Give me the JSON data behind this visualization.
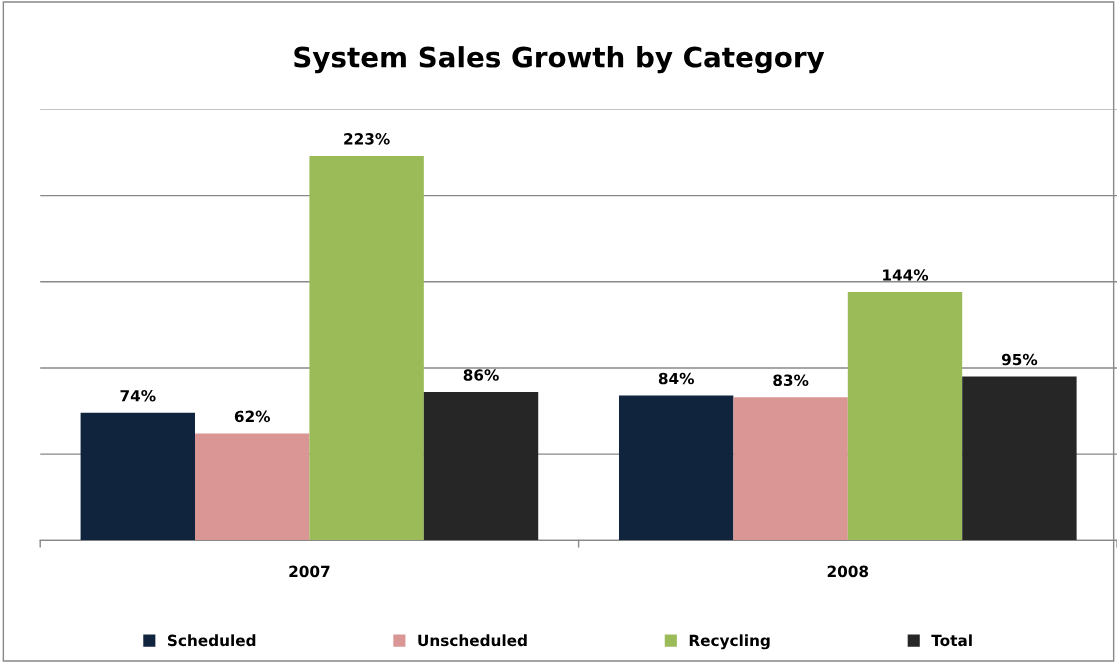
{
  "chart_data": {
    "type": "bar",
    "title": "System Sales Growth by Category",
    "categories": [
      "2007",
      "2008"
    ],
    "series": [
      {
        "name": "Scheduled",
        "color": "#10243e",
        "values": [
          74,
          84
        ],
        "value_labels": [
          "74%",
          "84%"
        ]
      },
      {
        "name": "Unscheduled",
        "color": "#d99694",
        "values": [
          62,
          83
        ],
        "value_labels": [
          "62%",
          "83%"
        ]
      },
      {
        "name": "Recycling",
        "color": "#9bbb59",
        "values": [
          223,
          144
        ],
        "value_labels": [
          "223%",
          "144%"
        ]
      },
      {
        "name": "Total",
        "color": "#262626",
        "values": [
          86,
          95
        ],
        "value_labels": [
          "86%",
          "95%"
        ]
      }
    ],
    "ylim": [
      0,
      250
    ],
    "yticks": [
      {
        "value": 0,
        "label": null
      },
      {
        "value": 50,
        "label": null
      },
      {
        "value": 100,
        "label": null
      },
      {
        "value": 150,
        "label": null
      },
      {
        "value": 200,
        "label": null
      },
      {
        "value": 250,
        "label": null
      }
    ],
    "grid": "y",
    "legend": "bottom",
    "tick_labels": "x"
  }
}
